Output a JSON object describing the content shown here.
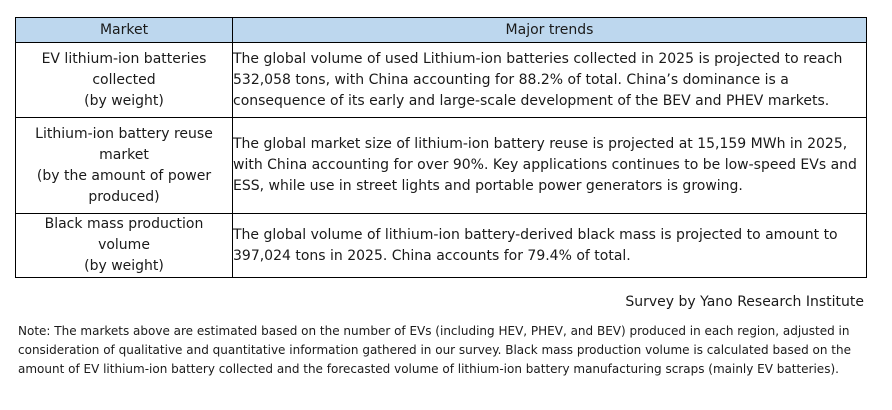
{
  "table": {
    "headers": {
      "market": "Market",
      "trends": "Major trends"
    },
    "header_bg_color": "#bdd7ee",
    "rows": [
      {
        "market_lines": [
          "EV lithium-ion batteries",
          "collected",
          "(by weight)"
        ],
        "trend": "The global volume of used Lithium-ion batteries collected in 2025 is projected to reach 532,058 tons, with China accounting for 88.2% of total. China’s dominance is a consequence of its early and large-scale development of the BEV and PHEV markets."
      },
      {
        "market_lines": [
          "Lithium-ion battery reuse",
          "market",
          " (by the amount of power",
          "produced)"
        ],
        "trend": "The global market size of lithium-ion battery reuse is projected at 15,159 MWh in 2025, with China accounting for over 90%. Key applications continues to be low-speed EVs and ESS, while use in street lights and portable power generators is growing."
      },
      {
        "market_lines": [
          "Black mass production",
          "volume",
          "(by weight)"
        ],
        "trend": "The global volume of lithium-ion battery-derived black mass is projected to amount to 397,024 tons in 2025.  China accounts for 79.4% of total."
      }
    ]
  },
  "source": "Survey by Yano Research Institute",
  "note": "Note: The markets above are estimated based on the number of EVs (including HEV, PHEV, and BEV) produced in each region, adjusted in consideration of qualitative and quantitative information gathered in our survey. Black mass production volume is calculated based on the amount of EV lithium-ion battery collected and the forecasted volume of lithium-ion battery manufacturing scraps (mainly EV batteries)."
}
